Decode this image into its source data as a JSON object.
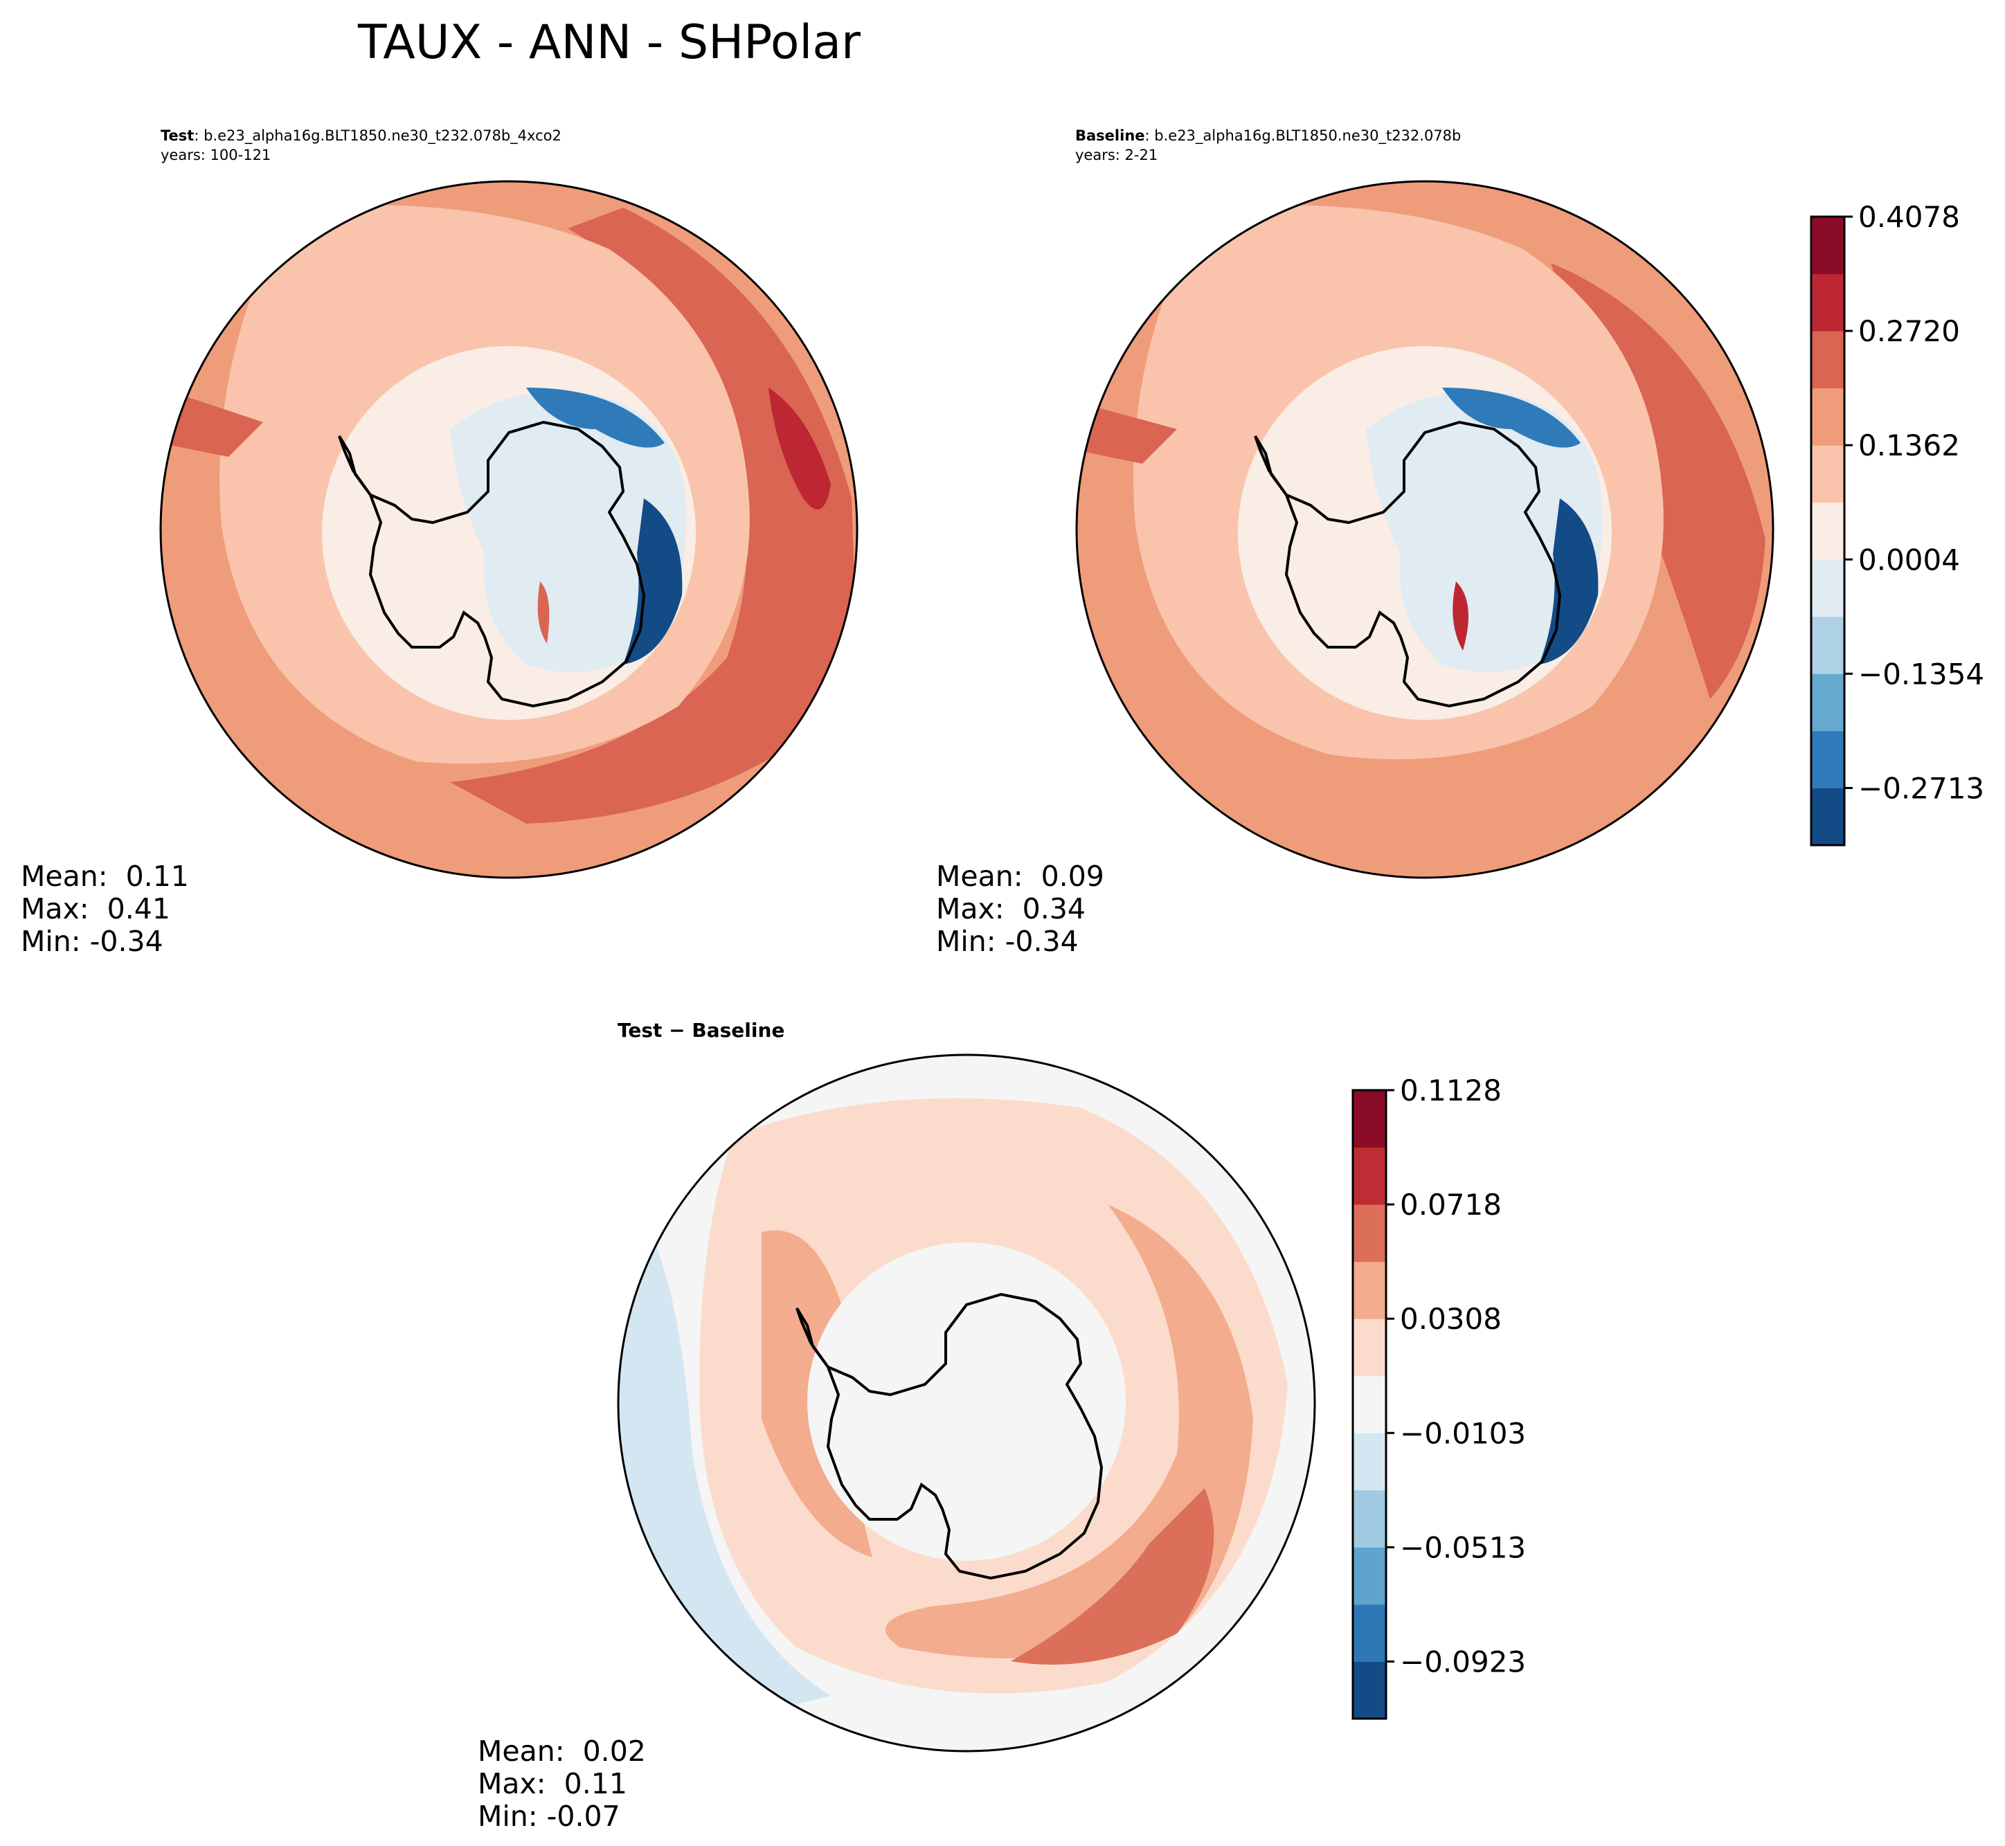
{
  "figure": {
    "title": "TAUX - ANN - SHPolar"
  },
  "panels": {
    "test": {
      "label_bold": "Test",
      "label_rest": ": b.e23_alpha16g.BLT1850.ne30_t232.078b_4xco2",
      "years": "years: 100-121",
      "mean": "Mean:  0.11",
      "max": "Max:  0.41",
      "min": "Min: -0.34"
    },
    "baseline": {
      "label_bold": "Baseline",
      "label_rest": ": b.e23_alpha16g.BLT1850.ne30_t232.078b",
      "years": "years: 2-21",
      "mean": "Mean:  0.09",
      "max": "Max:  0.34",
      "min": "Min: -0.34"
    },
    "diff": {
      "title": "Test − Baseline",
      "mean": "Mean:  0.02",
      "max": "Max:  0.11",
      "min": "Min: -0.07"
    }
  },
  "colorbars": {
    "main": {
      "colors": [
        "#134b87",
        "#2f7ab9",
        "#66a9cf",
        "#afd1e6",
        "#e0ebf2",
        "#f9ede6",
        "#f9c4ab",
        "#ef9c7b",
        "#d96552",
        "#bc2733",
        "#8b0c26"
      ],
      "ticks": [
        "−0.2713",
        "−0.1354",
        "0.0004",
        "0.1362",
        "0.2720",
        "0.4078"
      ],
      "tick_steps": [
        1,
        3,
        5,
        7,
        9,
        11
      ]
    },
    "diff": {
      "colors": [
        "#134b87",
        "#2e78b6",
        "#5ea4cd",
        "#9fcae1",
        "#d4e6f1",
        "#f5f5f5",
        "#fbdccc",
        "#f3ac8d",
        "#dc6f5a",
        "#bf2d34",
        "#8b0c26"
      ],
      "ticks": [
        "−0.0923",
        "−0.0513",
        "−0.0103",
        "0.0308",
        "0.0718",
        "0.1128"
      ],
      "tick_steps": [
        1,
        3,
        5,
        7,
        9,
        11
      ]
    }
  },
  "chart_data": {
    "type": "heatmap",
    "title": "TAUX - ANN - SHPolar",
    "projection": "south polar stereographic",
    "variable": "TAUX",
    "season": "ANN",
    "maps": [
      {
        "name": "Test",
        "mean": 0.11,
        "max": 0.41,
        "min": -0.34,
        "color_levels": [
          -0.2713,
          -0.1354,
          0.0004,
          0.1362,
          0.272,
          0.4078
        ]
      },
      {
        "name": "Baseline",
        "mean": 0.09,
        "max": 0.34,
        "min": -0.34,
        "color_levels": [
          -0.2713,
          -0.1354,
          0.0004,
          0.1362,
          0.272,
          0.4078
        ]
      },
      {
        "name": "Test - Baseline",
        "mean": 0.02,
        "max": 0.11,
        "min": -0.07,
        "color_levels": [
          -0.0923,
          -0.0513,
          -0.0103,
          0.0308,
          0.0718,
          0.1128
        ]
      }
    ]
  }
}
